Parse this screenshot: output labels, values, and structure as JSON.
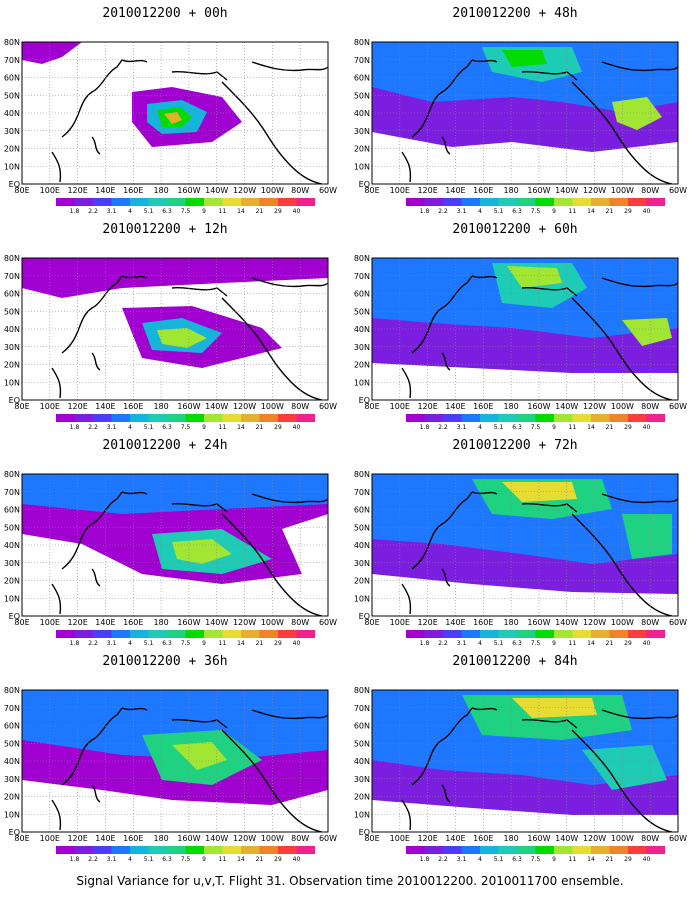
{
  "caption": "Signal Variance for u,v,T. Flight 31. Observation time 2010012200. 2010011700 ensemble.",
  "lat_labels": [
    "80N",
    "70N",
    "60N",
    "50N",
    "40N",
    "30N",
    "20N",
    "10N",
    "EQ"
  ],
  "lon_labels": [
    "80E",
    "100E",
    "120E",
    "140E",
    "160E",
    "180",
    "160W",
    "140W",
    "120W",
    "100W",
    "80W",
    "60W"
  ],
  "colorbar": {
    "levels": [
      "1.8",
      "2.2",
      "3.1",
      "4",
      "5.1",
      "6.3",
      "7.5",
      "9",
      "11",
      "14",
      "21",
      "29",
      "40"
    ],
    "colors": [
      "#a000d0",
      "#7c1ee0",
      "#4b3cff",
      "#1e78ff",
      "#14b4dc",
      "#1ecbb4",
      "#1ed282",
      "#00dc00",
      "#a0e632",
      "#e6dc32",
      "#e6af2d",
      "#f08228",
      "#fa3c3c",
      "#f0208c"
    ]
  },
  "panels": [
    {
      "title": "2010012200 + 00h"
    },
    {
      "title": "2010012200 + 48h"
    },
    {
      "title": "2010012200 + 12h"
    },
    {
      "title": "2010012200 + 60h"
    },
    {
      "title": "2010012200 + 24h"
    },
    {
      "title": "2010012200 + 72h"
    },
    {
      "title": "2010012200 + 36h"
    },
    {
      "title": "2010012200 + 84h"
    }
  ]
}
